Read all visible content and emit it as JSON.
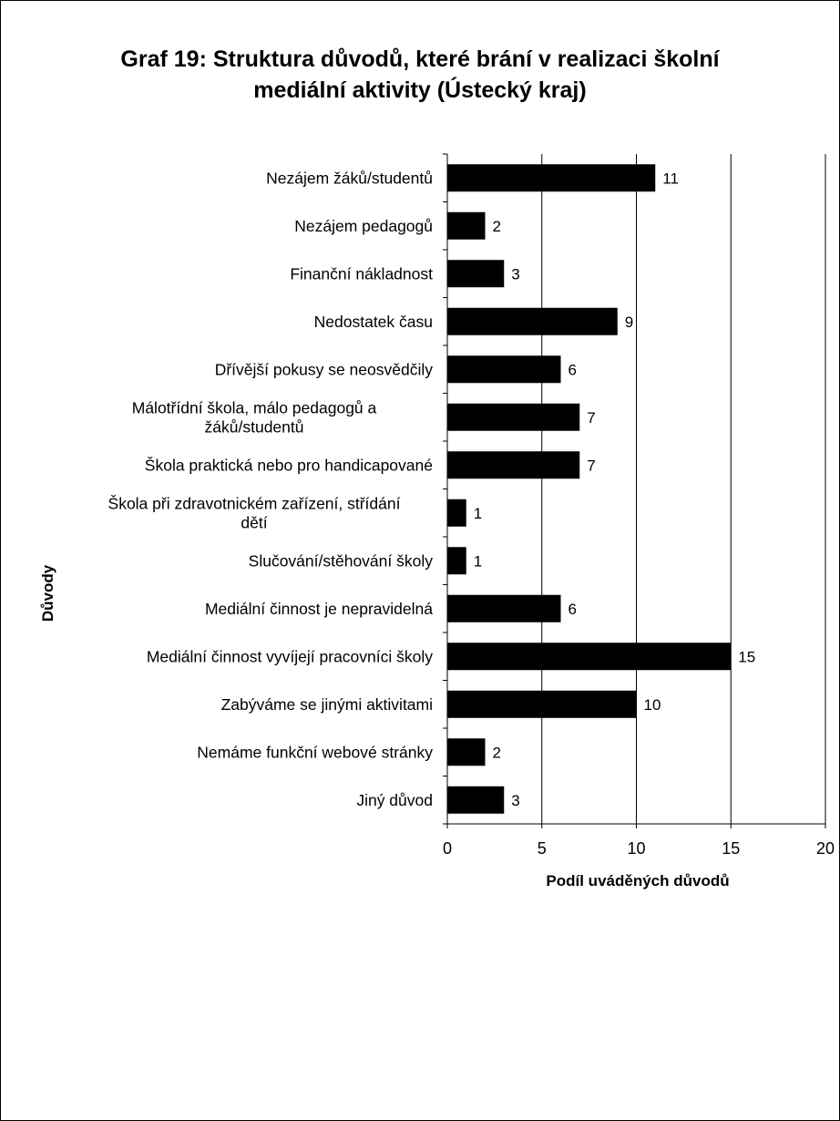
{
  "chart_data": {
    "type": "bar",
    "orientation": "horizontal",
    "title": "Graf 19: Struktura důvodů, které brání v realizaci školní mediální aktivity (Ústecký kraj)",
    "title_lines": [
      "Graf 19: Struktura důvodů, které brání v realizaci školní",
      "mediální aktivity (Ústecký kraj)"
    ],
    "xlabel": "Podíl uváděných důvodů",
    "ylabel": "Důvody",
    "xlim": [
      0,
      20
    ],
    "xticks": [
      "0",
      "5",
      "10",
      "15",
      "20"
    ],
    "grid": true,
    "legend": "none",
    "categories": [
      [
        "Nezájem žáků/studentů"
      ],
      [
        "Nezájem pedagogů"
      ],
      [
        "Finanční nákladnost"
      ],
      [
        "Nedostatek času"
      ],
      [
        "Dřívější pokusy se neosvědčily"
      ],
      [
        "Málotřídní škola, málo pedagogů a",
        "žáků/studentů"
      ],
      [
        "Škola praktická nebo pro handicapované"
      ],
      [
        "Škola při zdravotnickém zařízení, střídání",
        "dětí"
      ],
      [
        "Slučování/stěhování školy"
      ],
      [
        "Mediální činnost je nepravidelná"
      ],
      [
        "Mediální činnost vyvíjejí pracovníci školy"
      ],
      [
        "Zabýváme se jinými aktivitami"
      ],
      [
        "Nemáme funkční webové stránky"
      ],
      [
        "Jiný důvod"
      ]
    ],
    "values": [
      11,
      2,
      3,
      9,
      6,
      7,
      7,
      1,
      1,
      6,
      15,
      10,
      2,
      3
    ],
    "bar_color": "#000000",
    "grid_color": "#000000"
  }
}
